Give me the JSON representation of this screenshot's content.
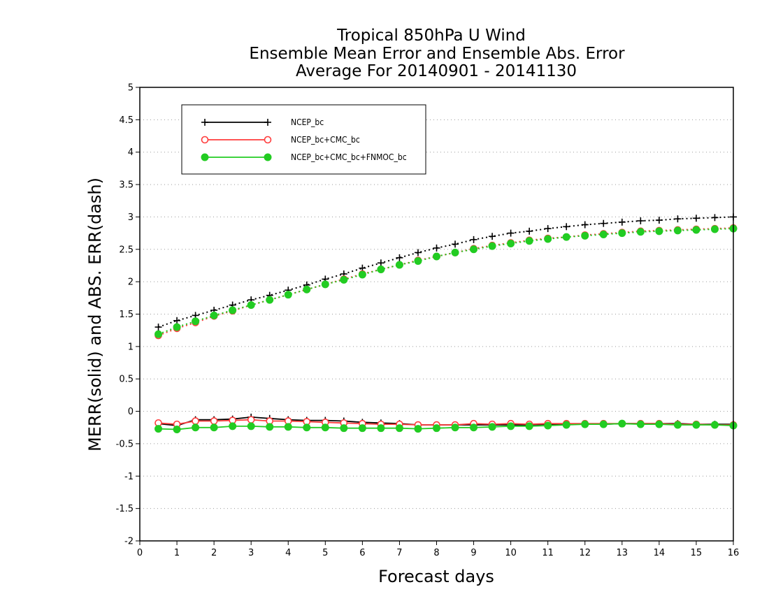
{
  "title": {
    "line1": "Tropical 850hPa U Wind",
    "line2": "Ensemble Mean Error and Ensemble Abs. Error",
    "line3": "Average For 20140901 - 20141130"
  },
  "chart_data": {
    "type": "line",
    "xlabel": "Forecast days",
    "ylabel": "MERR(solid) and ABS. ERR(dash)",
    "xlim": [
      0,
      16
    ],
    "ylim": [
      -2,
      5
    ],
    "xticks": [
      0,
      1,
      2,
      3,
      4,
      5,
      6,
      7,
      8,
      9,
      10,
      11,
      12,
      13,
      14,
      15,
      16
    ],
    "yticks": [
      -2,
      -1.5,
      -1,
      -0.5,
      0,
      0.5,
      1,
      1.5,
      2,
      2.5,
      3,
      3.5,
      4,
      4.5,
      5
    ],
    "ytick_labels": [
      "-2",
      "-1.5",
      "-1",
      "-0.5",
      "0",
      "0.5",
      "1",
      "1.5",
      "2",
      "2.5",
      "3",
      "3.5",
      "4",
      "4.5",
      "5"
    ],
    "grid": "horizontal dotted",
    "legend_position": "top-left",
    "x": [
      0.5,
      1,
      1.5,
      2,
      2.5,
      3,
      3.5,
      4,
      4.5,
      5,
      5.5,
      6,
      6.5,
      7,
      7.5,
      8,
      8.5,
      9,
      9.5,
      10,
      10.5,
      11,
      11.5,
      12,
      12.5,
      13,
      13.5,
      14,
      14.5,
      15,
      15.5,
      16
    ],
    "series": [
      {
        "name": "NCEP_bc",
        "color": "#000000",
        "marker": "plus",
        "merr": [
          -0.19,
          -0.22,
          -0.13,
          -0.13,
          -0.12,
          -0.09,
          -0.11,
          -0.13,
          -0.14,
          -0.14,
          -0.15,
          -0.17,
          -0.18,
          -0.19,
          -0.21,
          -0.21,
          -0.21,
          -0.21,
          -0.21,
          -0.21,
          -0.21,
          -0.2,
          -0.2,
          -0.19,
          -0.2,
          -0.19,
          -0.19,
          -0.19,
          -0.19,
          -0.2,
          -0.2,
          -0.2
        ],
        "abs_err": [
          1.3,
          1.4,
          1.48,
          1.56,
          1.64,
          1.72,
          1.79,
          1.87,
          1.95,
          2.04,
          2.12,
          2.21,
          2.29,
          2.37,
          2.45,
          2.52,
          2.58,
          2.65,
          2.7,
          2.75,
          2.78,
          2.82,
          2.85,
          2.88,
          2.9,
          2.92,
          2.94,
          2.95,
          2.97,
          2.98,
          2.99,
          3.0
        ]
      },
      {
        "name": "NCEP_bc+CMC_bc",
        "color": "#ff3c3c",
        "marker": "open-circle",
        "merr": [
          -0.18,
          -0.2,
          -0.15,
          -0.15,
          -0.14,
          -0.13,
          -0.15,
          -0.15,
          -0.16,
          -0.17,
          -0.18,
          -0.19,
          -0.2,
          -0.2,
          -0.21,
          -0.21,
          -0.21,
          -0.19,
          -0.2,
          -0.19,
          -0.2,
          -0.19,
          -0.19,
          -0.19,
          -0.19,
          -0.19,
          -0.19,
          -0.19,
          -0.2,
          -0.2,
          -0.21,
          -0.21
        ],
        "abs_err": [
          1.17,
          1.28,
          1.37,
          1.47,
          1.55,
          1.64,
          1.72,
          1.8,
          1.88,
          1.96,
          2.04,
          2.12,
          2.19,
          2.26,
          2.33,
          2.39,
          2.45,
          2.51,
          2.56,
          2.6,
          2.64,
          2.67,
          2.69,
          2.72,
          2.74,
          2.76,
          2.78,
          2.79,
          2.8,
          2.81,
          2.82,
          2.83
        ]
      },
      {
        "name": "NCEP_bc+CMC_bc+FNMOC_bc",
        "color": "#22cc22",
        "marker": "filled-circle",
        "merr": [
          -0.27,
          -0.28,
          -0.25,
          -0.25,
          -0.23,
          -0.23,
          -0.24,
          -0.24,
          -0.25,
          -0.25,
          -0.26,
          -0.26,
          -0.26,
          -0.26,
          -0.27,
          -0.26,
          -0.25,
          -0.25,
          -0.24,
          -0.23,
          -0.23,
          -0.22,
          -0.21,
          -0.2,
          -0.2,
          -0.19,
          -0.2,
          -0.2,
          -0.21,
          -0.21,
          -0.21,
          -0.22
        ],
        "abs_err": [
          1.19,
          1.3,
          1.39,
          1.48,
          1.56,
          1.64,
          1.72,
          1.8,
          1.88,
          1.96,
          2.03,
          2.11,
          2.19,
          2.26,
          2.32,
          2.39,
          2.45,
          2.5,
          2.55,
          2.59,
          2.63,
          2.66,
          2.69,
          2.71,
          2.73,
          2.75,
          2.77,
          2.78,
          2.79,
          2.8,
          2.81,
          2.82
        ]
      }
    ]
  }
}
